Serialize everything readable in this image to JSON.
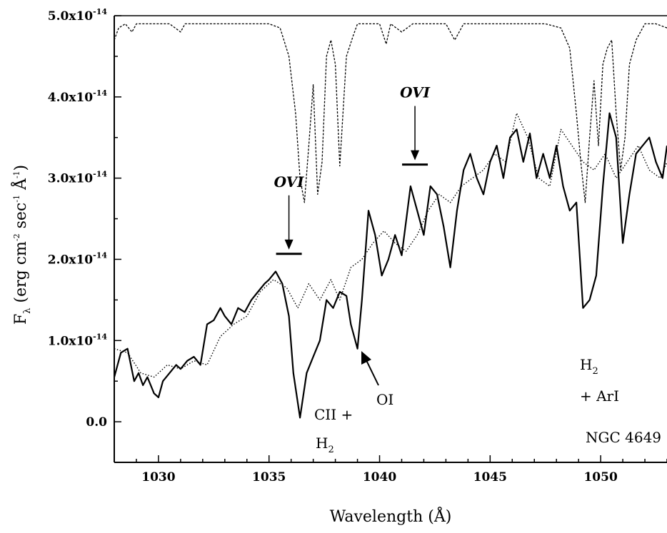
{
  "chart_data": {
    "type": "line",
    "xlabel": "Wavelength (Å)",
    "ylabel_main": "F",
    "ylabel_sub": "λ",
    "ylabel_rest": " (erg cm",
    "ylabel_sup1": "-2",
    "ylabel_mid": " sec",
    "ylabel_sup2": "-1",
    "ylabel_unit": " Å",
    "ylabel_sup3": "-1",
    "ylabel_close": ")",
    "xlim": [
      1028,
      1053
    ],
    "ylim": [
      -5e-15,
      5e-14
    ],
    "x_ticks": [
      1030,
      1035,
      1040,
      1045,
      1050
    ],
    "x_tick_labels": [
      "1030",
      "1035",
      "1040",
      "1045",
      "1050"
    ],
    "y_ticks": [
      {
        "value": 0,
        "mant": "0.0",
        "exp": ""
      },
      {
        "value": 1e-14,
        "mant": "1.0x10",
        "exp": "-14"
      },
      {
        "value": 2e-14,
        "mant": "2.0x10",
        "exp": "-14"
      },
      {
        "value": 3e-14,
        "mant": "3.0x10",
        "exp": "-14"
      },
      {
        "value": 4e-14,
        "mant": "4.0x10",
        "exp": "-14"
      },
      {
        "value": 5e-14,
        "mant": "5.0x10",
        "exp": "-14"
      }
    ],
    "series": [
      {
        "style": "solid",
        "x": [
          1028.0,
          1028.3,
          1028.6,
          1028.9,
          1029.1,
          1029.3,
          1029.5,
          1029.8,
          1030.0,
          1030.2,
          1030.5,
          1030.8,
          1031.0,
          1031.3,
          1031.6,
          1031.9,
          1032.2,
          1032.5,
          1032.8,
          1033.0,
          1033.3,
          1033.6,
          1033.9,
          1034.2,
          1034.5,
          1034.8,
          1035.0,
          1035.3,
          1035.6,
          1035.9,
          1036.1,
          1036.4,
          1036.7,
          1037.0,
          1037.3,
          1037.6,
          1037.9,
          1038.2,
          1038.5,
          1038.7,
          1039.0,
          1039.2,
          1039.5,
          1039.8,
          1040.1,
          1040.4,
          1040.7,
          1041.0,
          1041.4,
          1041.7,
          1042.0,
          1042.3,
          1042.6,
          1042.9,
          1043.2,
          1043.5,
          1043.8,
          1044.1,
          1044.4,
          1044.7,
          1045.0,
          1045.3,
          1045.6,
          1045.9,
          1046.2,
          1046.5,
          1046.8,
          1047.1,
          1047.4,
          1047.7,
          1048.0,
          1048.3,
          1048.6,
          1048.9,
          1049.2,
          1049.5,
          1049.8,
          1050.1,
          1050.4,
          1050.7,
          1051.0,
          1051.3,
          1051.6,
          1051.9,
          1052.2,
          1052.5,
          1052.8,
          1053.0
        ],
        "y": [
          5.5e-15,
          8.5e-15,
          9e-15,
          5e-15,
          6e-15,
          4.5e-15,
          5.5e-15,
          3.5e-15,
          3e-15,
          5e-15,
          6e-15,
          7e-15,
          6.5e-15,
          7.5e-15,
          8e-15,
          7e-15,
          1.2e-14,
          1.25e-14,
          1.4e-14,
          1.3e-14,
          1.2e-14,
          1.4e-14,
          1.35e-14,
          1.5e-14,
          1.6e-14,
          1.7e-14,
          1.75e-14,
          1.85e-14,
          1.7e-14,
          1.3e-14,
          6e-15,
          5e-16,
          6e-15,
          8e-15,
          1e-14,
          1.5e-14,
          1.4e-14,
          1.6e-14,
          1.55e-14,
          1.2e-14,
          9e-15,
          1.5e-14,
          2.6e-14,
          2.3e-14,
          1.8e-14,
          2e-14,
          2.3e-14,
          2.05e-14,
          2.9e-14,
          2.6e-14,
          2.3e-14,
          2.9e-14,
          2.8e-14,
          2.4e-14,
          1.9e-14,
          2.6e-14,
          3.1e-14,
          3.3e-14,
          3e-14,
          2.8e-14,
          3.2e-14,
          3.4e-14,
          3e-14,
          3.5e-14,
          3.6e-14,
          3.2e-14,
          3.55e-14,
          3e-14,
          3.3e-14,
          3e-14,
          3.4e-14,
          2.9e-14,
          2.6e-14,
          2.7e-14,
          1.4e-14,
          1.5e-14,
          1.8e-14,
          2.9e-14,
          3.8e-14,
          3.5e-14,
          2.2e-14,
          2.8e-14,
          3.3e-14,
          3.4e-14,
          3.5e-14,
          3.2e-14,
          3e-14,
          3.4e-14
        ]
      },
      {
        "style": "dotted",
        "x": [
          1028.0,
          1028.6,
          1029.2,
          1029.8,
          1030.4,
          1031.0,
          1031.6,
          1032.2,
          1032.8,
          1033.4,
          1034.0,
          1034.6,
          1035.2,
          1035.8,
          1036.3,
          1036.8,
          1037.3,
          1037.8,
          1038.2,
          1038.7,
          1039.2,
          1039.7,
          1040.2,
          1040.7,
          1041.2,
          1041.7,
          1042.2,
          1042.7,
          1043.2,
          1043.7,
          1044.2,
          1044.7,
          1045.2,
          1045.7,
          1046.2,
          1046.7,
          1047.2,
          1047.7,
          1048.2,
          1048.7,
          1049.2,
          1049.7,
          1050.2,
          1050.7,
          1051.2,
          1051.7,
          1052.2,
          1052.7,
          1053.0
        ],
        "y": [
          9e-15,
          8.5e-15,
          6e-15,
          5.5e-15,
          7e-15,
          6.5e-15,
          7.5e-15,
          7e-15,
          1.05e-14,
          1.2e-14,
          1.3e-14,
          1.6e-14,
          1.75e-14,
          1.65e-14,
          1.4e-14,
          1.7e-14,
          1.5e-14,
          1.75e-14,
          1.5e-14,
          1.9e-14,
          2e-14,
          2.2e-14,
          2.35e-14,
          2.2e-14,
          2.1e-14,
          2.3e-14,
          2.6e-14,
          2.8e-14,
          2.7e-14,
          2.9e-14,
          3e-14,
          3.1e-14,
          3.3e-14,
          3.2e-14,
          3.8e-14,
          3.5e-14,
          3e-14,
          2.9e-14,
          3.6e-14,
          3.4e-14,
          3.2e-14,
          3.1e-14,
          3.3e-14,
          3e-14,
          3.2e-14,
          3.4e-14,
          3.1e-14,
          3e-14,
          3.2e-14
        ]
      },
      {
        "style": "dashed",
        "x": [
          1028.0,
          1028.2,
          1028.5,
          1028.8,
          1029.0,
          1029.5,
          1030.0,
          1030.5,
          1031.0,
          1031.2,
          1031.5,
          1032.0,
          1033.0,
          1034.0,
          1035.0,
          1035.5,
          1035.9,
          1036.2,
          1036.4,
          1036.6,
          1036.8,
          1037.0,
          1037.2,
          1037.4,
          1037.6,
          1037.8,
          1038.0,
          1038.2,
          1038.5,
          1038.8,
          1039.0,
          1039.5,
          1040.0,
          1040.3,
          1040.5,
          1041.0,
          1041.5,
          1042.0,
          1043.0,
          1043.4,
          1043.8,
          1044.5,
          1045.5,
          1046.5,
          1047.5,
          1048.2,
          1048.6,
          1048.9,
          1049.1,
          1049.3,
          1049.5,
          1049.7,
          1049.9,
          1050.1,
          1050.3,
          1050.5,
          1050.7,
          1050.9,
          1051.1,
          1051.3,
          1051.6,
          1052.0,
          1052.5,
          1053.0
        ],
        "y": [
          4.7e-14,
          4.85e-14,
          4.9e-14,
          4.8e-14,
          4.9e-14,
          4.9e-14,
          4.9e-14,
          4.9e-14,
          4.8e-14,
          4.9e-14,
          4.9e-14,
          4.9e-14,
          4.9e-14,
          4.9e-14,
          4.9e-14,
          4.85e-14,
          4.5e-14,
          3.8e-14,
          3e-14,
          2.7e-14,
          3.4e-14,
          4.15e-14,
          2.8e-14,
          3.2e-14,
          4.5e-14,
          4.7e-14,
          4.4e-14,
          3.15e-14,
          4.5e-14,
          4.75e-14,
          4.9e-14,
          4.9e-14,
          4.9e-14,
          4.65e-14,
          4.9e-14,
          4.8e-14,
          4.9e-14,
          4.9e-14,
          4.9e-14,
          4.7e-14,
          4.9e-14,
          4.9e-14,
          4.9e-14,
          4.9e-14,
          4.9e-14,
          4.85e-14,
          4.6e-14,
          3.8e-14,
          3.2e-14,
          2.7e-14,
          3.5e-14,
          4.2e-14,
          3.4e-14,
          4.4e-14,
          4.6e-14,
          4.7e-14,
          3.8e-14,
          3.1e-14,
          3.5e-14,
          4.4e-14,
          4.7e-14,
          4.9e-14,
          4.9e-14,
          4.85e-14
        ]
      }
    ],
    "annotations": {
      "ovi_left": {
        "label": "OVI",
        "x": 1035.9,
        "y": 2.05e-14
      },
      "ovi_right": {
        "label": "OVI",
        "x": 1041.6,
        "y": 3.15e-14
      },
      "cii_label": "CII +",
      "h2_a": "H",
      "h2_a_sub": "2",
      "oi_label": "OI",
      "h2_b": "H",
      "h2_b_sub": "2",
      "arI_label": "+ ArI",
      "object_label": "NGC 4649"
    }
  }
}
